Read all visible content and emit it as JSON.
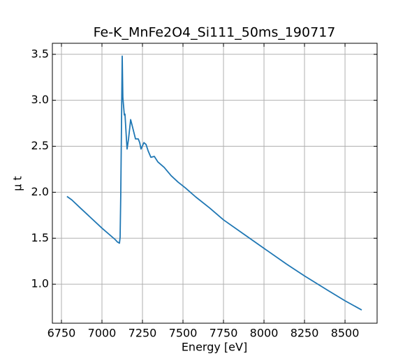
{
  "chart_data": {
    "type": "line",
    "title": "Fe-K_MnFe2O4_Si111_50ms_190717",
    "xlabel": "Energy [eV]",
    "ylabel": "μ t",
    "x": [
      6784,
      6814,
      6866,
      7000,
      7082,
      7095,
      7108,
      7112,
      7116,
      7125,
      7129,
      7138,
      7142,
      7151,
      7155,
      7164,
      7177,
      7190,
      7207,
      7224,
      7233,
      7241,
      7259,
      7272,
      7285,
      7302,
      7323,
      7345,
      7384,
      7427,
      7470,
      7513,
      7578,
      7664,
      7750,
      7879,
      8000,
      8138,
      8250,
      8397,
      8500,
      8603
    ],
    "series": [
      {
        "name": "mu",
        "color": "#1f77b4",
        "values": [
          1.955,
          1.917,
          1.83,
          1.61,
          1.485,
          1.46,
          1.446,
          1.51,
          1.97,
          3.48,
          3.03,
          2.84,
          2.85,
          2.58,
          2.47,
          2.58,
          2.79,
          2.7,
          2.58,
          2.58,
          2.54,
          2.47,
          2.54,
          2.52,
          2.45,
          2.38,
          2.39,
          2.33,
          2.27,
          2.18,
          2.11,
          2.05,
          1.95,
          1.83,
          1.7,
          1.54,
          1.39,
          1.22,
          1.09,
          0.93,
          0.82,
          0.72
        ]
      }
    ],
    "xlim": [
      6694,
      8698
    ],
    "ylim": [
      0.576,
      3.62
    ],
    "xticks": [
      6750,
      7000,
      7250,
      7500,
      7750,
      8000,
      8250,
      8500
    ],
    "yticks": [
      {
        "value": 1,
        "label": "1.0"
      },
      1.5,
      {
        "value": 2,
        "label": "2.0"
      },
      2.5,
      {
        "value": 3,
        "label": "3.0"
      },
      3.5
    ],
    "grid": true
  }
}
